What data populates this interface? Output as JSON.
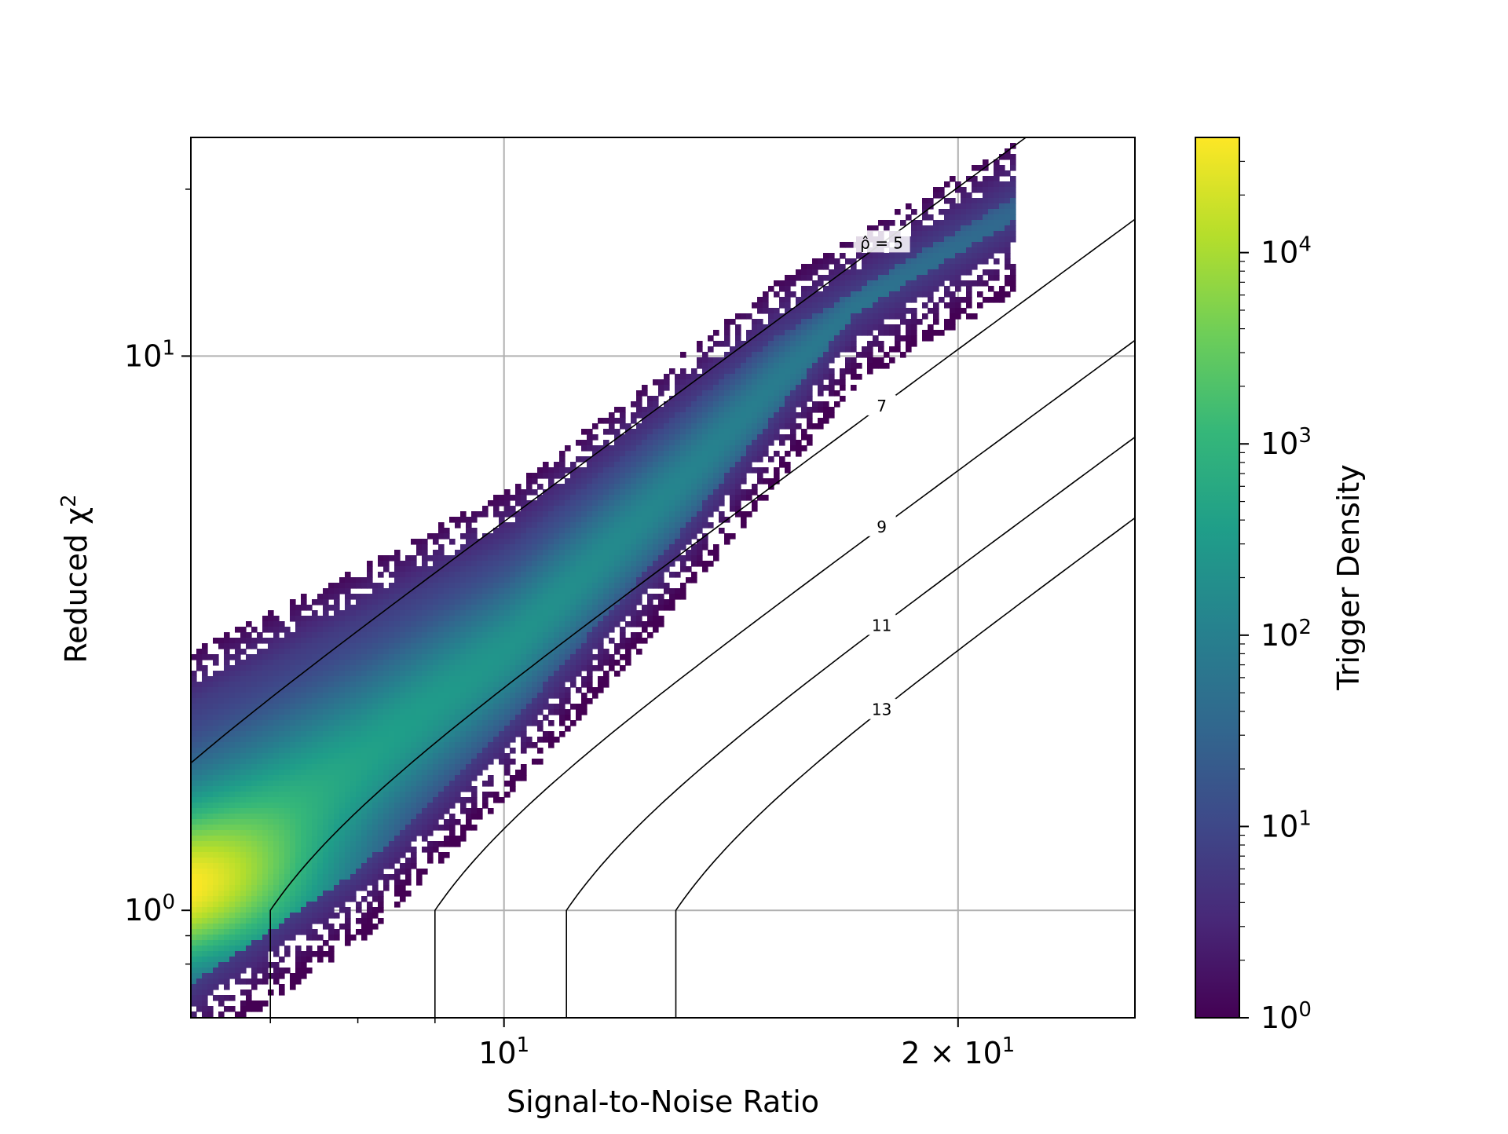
{
  "chart_data": {
    "type": "heatmap",
    "subtype": "log-log hexbin density",
    "x_axis": {
      "label": "Signal-to-Noise Ratio",
      "scale": "log",
      "range": [
        6.2,
        26.2
      ],
      "tick_labels": [
        {
          "value": 10,
          "text": "10",
          "sup": "1"
        },
        {
          "value": 20,
          "text": "2 × 10",
          "sup": "1"
        }
      ],
      "minor_ticks": [
        7,
        8,
        9,
        10,
        20
      ]
    },
    "y_axis": {
      "label": "Reduced χ",
      "label_sup": "2",
      "scale": "log",
      "range": [
        0.64,
        24.8
      ],
      "tick_labels": [
        {
          "value": 1,
          "text": "10",
          "sup": "0"
        },
        {
          "value": 10,
          "text": "10",
          "sup": "1"
        }
      ],
      "minor_ticks": [
        0.8,
        0.9,
        20
      ]
    },
    "grid": true,
    "colorbar": {
      "label": "Trigger Density",
      "scale": "log",
      "colormap": "viridis",
      "range": [
        1,
        40000
      ],
      "tick_labels": [
        {
          "value": 1,
          "text": "10",
          "sup": "0"
        },
        {
          "value": 10,
          "text": "10",
          "sup": "1"
        },
        {
          "value": 100,
          "text": "10",
          "sup": "2"
        },
        {
          "value": 1000,
          "text": "10",
          "sup": "3"
        },
        {
          "value": 10000,
          "text": "10",
          "sup": "4"
        }
      ]
    },
    "density_band": {
      "description_points_upper_edge": [
        [
          6.2,
          2.85
        ],
        [
          10,
          5.5
        ],
        [
          15,
          13
        ],
        [
          19,
          19
        ]
      ],
      "description_points_lower_edge": [
        [
          6.4,
          0.66
        ],
        [
          8,
          1.0
        ],
        [
          10,
          1.8
        ],
        [
          13,
          4.0
        ],
        [
          17,
          10
        ],
        [
          21,
          14
        ]
      ],
      "peak": {
        "x": 6.3,
        "y": 1.05,
        "density": 40000
      }
    },
    "contours": [
      {
        "label": "ρ̂ = 5",
        "rho": 5,
        "boxed": true
      },
      {
        "label": "7",
        "rho": 7
      },
      {
        "label": "9",
        "rho": 9
      },
      {
        "label": "11",
        "rho": 11
      },
      {
        "label": "13",
        "rho": 13
      }
    ],
    "colors": {
      "viridis": [
        "#440154",
        "#482878",
        "#3e4989",
        "#31688e",
        "#26828e",
        "#1f9e89",
        "#35b779",
        "#6ece58",
        "#b5de2b",
        "#fde725"
      ],
      "grid": "#b0b0b0",
      "contour": "#000000"
    }
  }
}
